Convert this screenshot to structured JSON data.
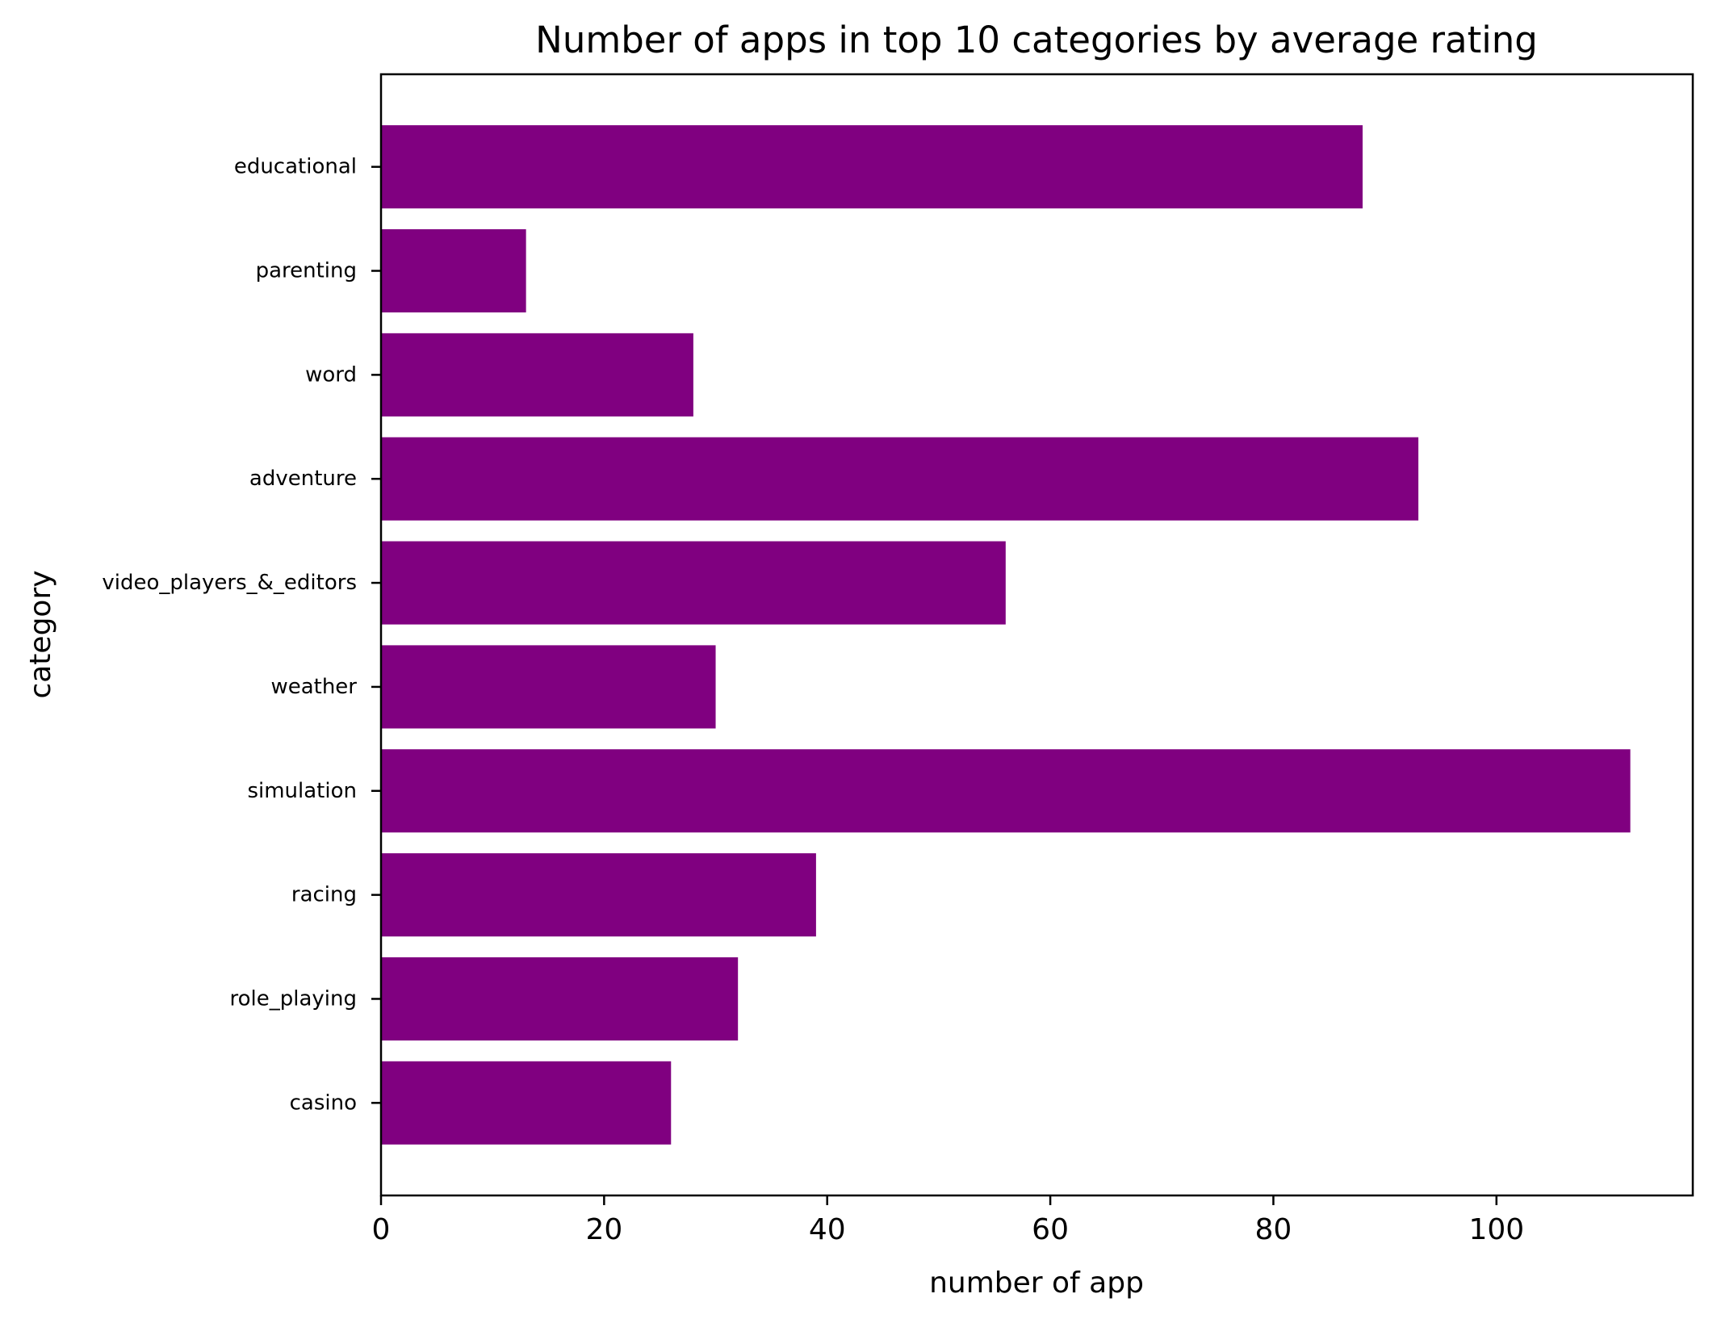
{
  "chart_data": {
    "type": "bar",
    "orientation": "horizontal",
    "title": "Number of apps in top 10 categories by average rating",
    "xlabel": "number of app",
    "ylabel": "category",
    "categories": [
      "casino",
      "role_playing",
      "racing",
      "simulation",
      "weather",
      "video_players_&_editors",
      "adventure",
      "word",
      "parenting",
      "educational"
    ],
    "values": [
      26,
      32,
      39,
      112,
      30,
      56,
      93,
      28,
      13,
      88
    ],
    "xlim": [
      0,
      117.6
    ],
    "xticks": [
      0,
      20,
      40,
      60,
      80,
      100
    ],
    "grid": false,
    "colors": {
      "bar": "#800080",
      "axis": "#000000"
    }
  }
}
